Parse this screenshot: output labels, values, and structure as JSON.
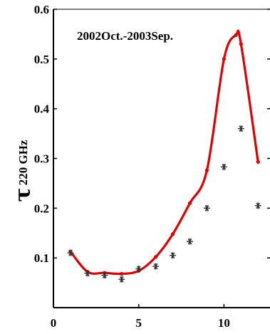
{
  "chart_data": {
    "type": "line",
    "annotation": "2002Oct.-2003Sep.",
    "ylabel_symbol": "τ",
    "ylabel_subscript": "220 GHz",
    "xlabel": "",
    "xlim": [
      0,
      12.7
    ],
    "ylim": [
      0,
      0.6
    ],
    "x_ticks": [
      0,
      5,
      10
    ],
    "x_tick_labels": [
      "0",
      "5",
      "10"
    ],
    "y_ticks": [
      0.1,
      0.2,
      0.3,
      0.4,
      0.5,
      0.6
    ],
    "y_tick_labels": [
      "0.1",
      "0.2",
      "0.3",
      "0.4",
      "0.5",
      "0.6"
    ],
    "grid": false,
    "series": [
      {
        "style": "line",
        "color": "#e00000",
        "x": [
          1,
          2,
          3,
          4,
          5,
          6,
          7,
          8,
          9,
          10,
          10.7,
          11,
          12
        ],
        "y": [
          0.113,
          0.072,
          0.07,
          0.068,
          0.074,
          0.102,
          0.148,
          0.21,
          0.276,
          0.5,
          0.548,
          0.53,
          0.293
        ]
      },
      {
        "style": "markers",
        "marker": "asterisk",
        "color": "#333333",
        "x": [
          1,
          2,
          3,
          4,
          5,
          6,
          7,
          8,
          9,
          10,
          11,
          12
        ],
        "y": [
          0.11,
          0.069,
          0.065,
          0.057,
          0.078,
          0.083,
          0.105,
          0.133,
          0.2,
          0.283,
          0.36,
          0.205
        ]
      }
    ]
  }
}
